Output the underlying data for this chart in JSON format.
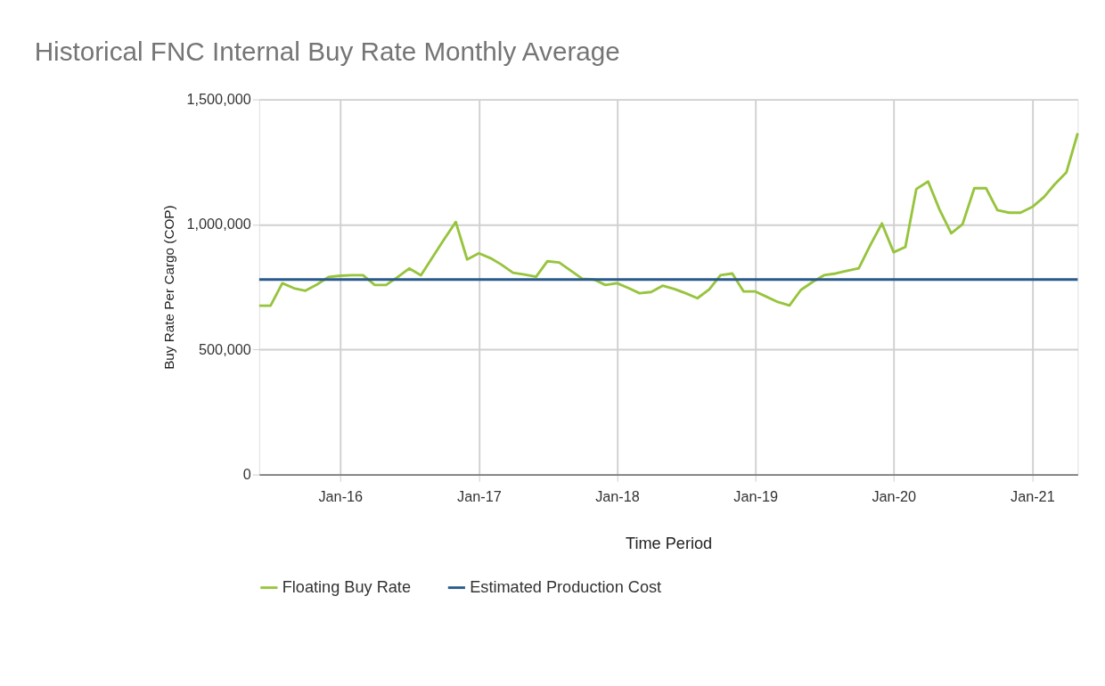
{
  "chart_data": {
    "type": "line",
    "title": "Historical FNC Internal Buy Rate Monthly Average",
    "xlabel": "Time Period",
    "ylabel": "Buy Rate Per Cargo (COP)",
    "x": [
      "2015-06",
      "2015-07",
      "2015-08",
      "2015-09",
      "2015-10",
      "2015-11",
      "2015-12",
      "2016-01",
      "2016-02",
      "2016-03",
      "2016-04",
      "2016-05",
      "2016-06",
      "2016-07",
      "2016-08",
      "2016-09",
      "2016-10",
      "2016-11",
      "2016-12",
      "2017-01",
      "2017-02",
      "2017-03",
      "2017-04",
      "2017-05",
      "2017-06",
      "2017-07",
      "2017-08",
      "2017-09",
      "2017-10",
      "2017-11",
      "2017-12",
      "2018-01",
      "2018-02",
      "2018-03",
      "2018-04",
      "2018-05",
      "2018-06",
      "2018-07",
      "2018-08",
      "2018-09",
      "2018-10",
      "2018-11",
      "2018-12",
      "2019-01",
      "2019-02",
      "2019-03",
      "2019-04",
      "2019-05",
      "2019-06",
      "2019-07",
      "2019-08",
      "2019-09",
      "2019-10",
      "2019-11",
      "2019-12",
      "2020-01",
      "2020-02",
      "2020-03",
      "2020-04",
      "2020-05",
      "2020-06",
      "2020-07",
      "2020-08",
      "2020-09",
      "2020-10",
      "2020-11",
      "2020-12",
      "2021-01",
      "2021-02",
      "2021-03",
      "2021-04",
      "2021-05"
    ],
    "series": [
      {
        "name": "Floating Buy Rate",
        "color": "#97c43d",
        "values": [
          675000,
          675000,
          765000,
          745000,
          735000,
          760000,
          790000,
          795000,
          797000,
          797000,
          758000,
          758000,
          790000,
          824000,
          797000,
          870000,
          940000,
          1010000,
          860000,
          885000,
          865000,
          840000,
          807000,
          800000,
          791000,
          853000,
          848000,
          815000,
          783000,
          780000,
          758000,
          765000,
          745000,
          725000,
          730000,
          755000,
          742000,
          725000,
          705000,
          740000,
          797000,
          804000,
          732000,
          732000,
          710000,
          690000,
          676000,
          738000,
          770000,
          797000,
          804000,
          815000,
          825000,
          919000,
          1004000,
          889000,
          910000,
          1142000,
          1172000,
          1060000,
          965000,
          1001000,
          1145000,
          1145000,
          1057000,
          1047000,
          1047000,
          1070000,
          1110000,
          1160000,
          1208000,
          1365000
        ]
      },
      {
        "name": "Estimated Production Cost",
        "color": "#2a5a8c",
        "x": [
          "2015-06",
          "2021-05"
        ],
        "values": [
          780000,
          780000
        ]
      }
    ],
    "xlim": [
      "2015-06",
      "2021-05"
    ],
    "xticks": [
      {
        "value": "2016-01",
        "label": "Jan-16"
      },
      {
        "value": "2017-01",
        "label": "Jan-17"
      },
      {
        "value": "2018-01",
        "label": "Jan-18"
      },
      {
        "value": "2019-01",
        "label": "Jan-19"
      },
      {
        "value": "2020-01",
        "label": "Jan-20"
      },
      {
        "value": "2021-01",
        "label": "Jan-21"
      }
    ],
    "ylim": [
      0,
      1500000
    ],
    "yticks": [
      0,
      {
        "value": 500000,
        "label": "500,000"
      },
      {
        "value": 1000000,
        "label": "1,000,000"
      },
      {
        "value": 1500000,
        "label": "1,500,000"
      }
    ],
    "grid": true,
    "legend": "bottom",
    "marker": "none",
    "line_style": "solid"
  }
}
